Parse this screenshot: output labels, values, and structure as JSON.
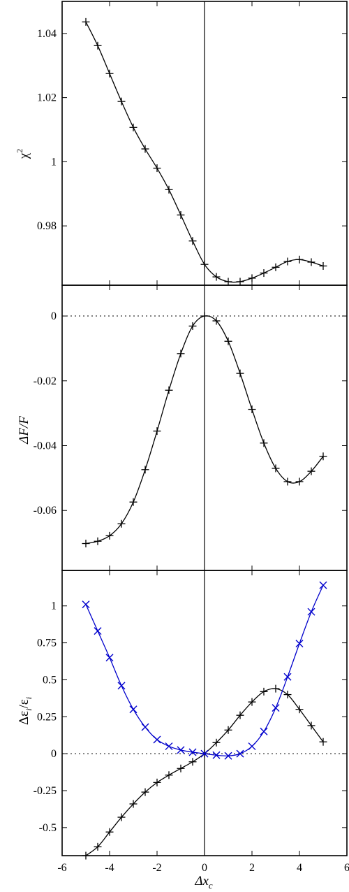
{
  "colors": {
    "black_series": "#000000",
    "blue_series": "#0000cc",
    "frame": "#000000"
  },
  "chart_data": {
    "type": "line",
    "shared_x": {
      "label": "Δx_c",
      "label_main": "Δx",
      "label_sub": "c",
      "xlim": [
        -6,
        6
      ],
      "ticks": [
        -6,
        -4,
        -2,
        0,
        2,
        4,
        6
      ],
      "tick_labels": [
        "-6",
        "-4",
        "-2",
        "0",
        "2",
        "4",
        "6"
      ]
    },
    "reference_lines": {
      "vertical_x": 0
    },
    "panels": [
      {
        "id": "chi2",
        "ylabel_main": "χ",
        "ylabel_sup": "2",
        "ylim": [
          0.9615,
          1.05
        ],
        "yticks": [
          0.98,
          1,
          1.02,
          1.04
        ],
        "ytick_labels": [
          "0.98",
          "1",
          "1.02",
          "1.04"
        ],
        "zero_line": false,
        "series": [
          {
            "marker": "plus",
            "color": "#000000",
            "x": [
              -5,
              -4.5,
              -4,
              -3.5,
              -3,
              -2.5,
              -2,
              -1.5,
              -1,
              -0.5,
              0,
              0.5,
              1,
              1.5,
              2,
              2.5,
              3,
              3.5,
              4,
              4.5,
              5
            ],
            "y": [
              1.0436,
              1.0362,
              1.0275,
              1.0188,
              1.0107,
              1.004,
              0.998,
              0.9913,
              0.9834,
              0.9753,
              0.968,
              0.9641,
              0.9626,
              0.9626,
              0.9637,
              0.9653,
              0.9671,
              0.9689,
              0.9695,
              0.9687,
              0.9675
            ]
          }
        ]
      },
      {
        "id": "dF",
        "ylabel": "ΔF/F",
        "ylim": [
          -0.0785,
          0.0095
        ],
        "yticks": [
          -0.06,
          -0.04,
          -0.02,
          0
        ],
        "ytick_labels": [
          "-0.06",
          "-0.04",
          "-0.02",
          "0"
        ],
        "zero_line": true,
        "series": [
          {
            "marker": "plus",
            "color": "#000000",
            "x": [
              -5,
              -4.5,
              -4,
              -3.5,
              -3,
              -2.5,
              -2,
              -1.5,
              -1,
              -0.5,
              0,
              0.5,
              1,
              1.5,
              2,
              2.5,
              3,
              3.5,
              4,
              4.5,
              5
            ],
            "y": [
              -0.0702,
              -0.0695,
              -0.0678,
              -0.0641,
              -0.0574,
              -0.0474,
              -0.0355,
              -0.0229,
              -0.0116,
              -0.0031,
              0.0,
              -0.0015,
              -0.0078,
              -0.0177,
              -0.0288,
              -0.0392,
              -0.047,
              -0.0511,
              -0.0511,
              -0.0479,
              -0.0433
            ]
          }
        ]
      },
      {
        "id": "deps",
        "ylabel_main": "Δε",
        "ylabel_sub": "i",
        "ylabel_den_main": "ε",
        "ylabel_den_sub": "i",
        "ylim": [
          -0.69,
          1.24
        ],
        "yticks": [
          -0.5,
          -0.25,
          0,
          0.25,
          0.5,
          0.75,
          1
        ],
        "ytick_labels": [
          "-0.5",
          "-0.25",
          "0",
          "0.25",
          "0.5",
          "0.75",
          "1"
        ],
        "zero_line": true,
        "series": [
          {
            "marker": "plus",
            "color": "#000000",
            "x": [
              -5,
              -4.5,
              -4,
              -3.5,
              -3,
              -2.5,
              -2,
              -1.5,
              -1,
              -0.5,
              0,
              0.5,
              1,
              1.5,
              2,
              2.5,
              3,
              3.5,
              4,
              4.5,
              5
            ],
            "y": [
              -0.69,
              -0.63,
              -0.53,
              -0.43,
              -0.34,
              -0.26,
              -0.195,
              -0.145,
              -0.1,
              -0.055,
              0.0,
              0.075,
              0.16,
              0.26,
              0.35,
              0.42,
              0.44,
              0.4,
              0.3,
              0.19,
              0.08
            ]
          },
          {
            "marker": "cross",
            "color": "#0000cc",
            "x": [
              -5,
              -4.5,
              -4,
              -3.5,
              -3,
              -2.5,
              -2,
              -1.5,
              -1,
              -0.5,
              0,
              0.5,
              1,
              1.5,
              2,
              2.5,
              3,
              3.5,
              4,
              4.5,
              5
            ],
            "y": [
              1.01,
              0.83,
              0.65,
              0.46,
              0.3,
              0.18,
              0.095,
              0.05,
              0.025,
              0.01,
              0.0,
              -0.01,
              -0.015,
              0.0,
              0.05,
              0.15,
              0.31,
              0.52,
              0.745,
              0.96,
              1.14
            ]
          }
        ]
      }
    ]
  }
}
